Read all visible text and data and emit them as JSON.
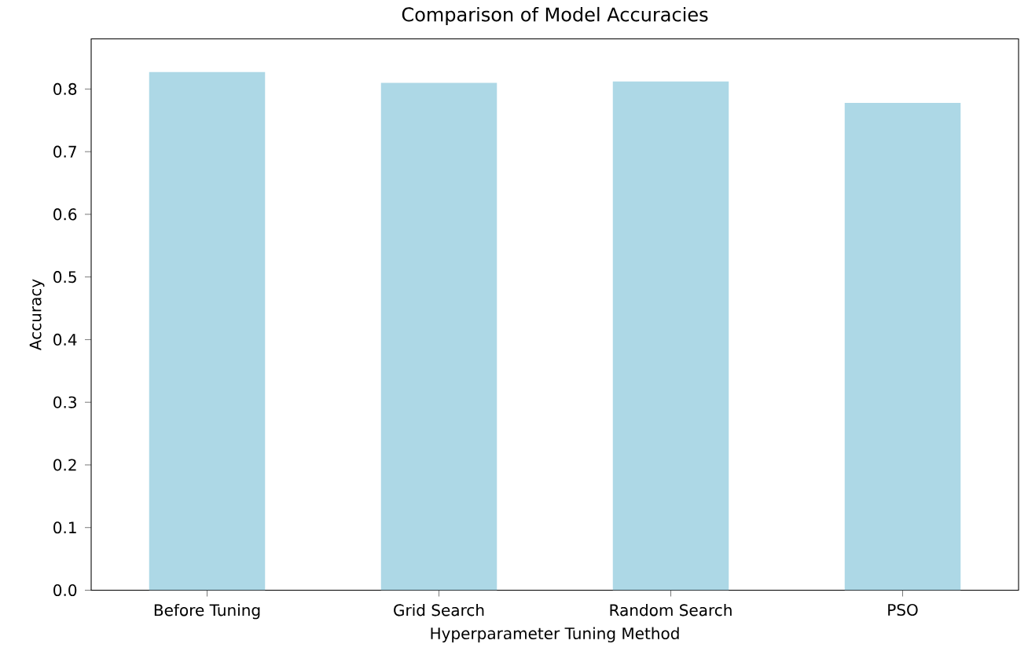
{
  "chart_data": {
    "type": "bar",
    "title": "Comparison of Model Accuracies",
    "xlabel": "Hyperparameter Tuning Method",
    "ylabel": "Accuracy",
    "categories": [
      "Before Tuning",
      "Grid Search",
      "Random Search",
      "PSO"
    ],
    "values": [
      0.827,
      0.81,
      0.812,
      0.778
    ],
    "color": "#add8e6",
    "ylim": [
      0,
      0.88
    ],
    "yticks": [
      {
        "value": 0,
        "label": "0.0"
      },
      0.1,
      0.2,
      0.3,
      0.4,
      0.5,
      0.6,
      0.7,
      0.8
    ],
    "grid": false
  }
}
